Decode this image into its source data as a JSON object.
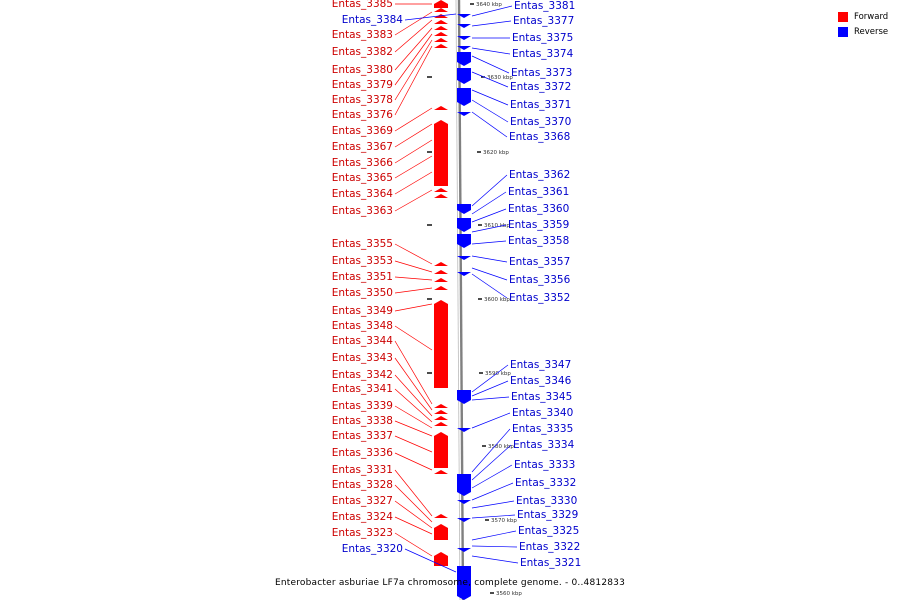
{
  "legend": {
    "forward_label": "Forward",
    "reverse_label": "Reverse",
    "forward_color": "#ff0000",
    "reverse_color": "#0000ff"
  },
  "caption": "Enterobacter asburiae LF7a chromosome, complete genome. - 0..4812833",
  "colors": {
    "forward": "#ff0000",
    "reverse": "#0000ff",
    "forward_label": "#cc0000",
    "reverse_label": "#0000cc",
    "axis": "#808080"
  },
  "ticks": [
    "3640 kbp",
    "3630 kbp",
    "3620 kbp",
    "3610 kbp",
    "3600 kbp",
    "3590 kbp",
    "3580 kbp",
    "3570 kbp",
    "3560 kbp"
  ],
  "forward_labels": [
    "Entas_3385",
    "Entas_3383",
    "Entas_3382",
    "Entas_3380",
    "Entas_3379",
    "Entas_3378",
    "Entas_3376",
    "Entas_3369",
    "Entas_3367",
    "Entas_3366",
    "Entas_3365",
    "Entas_3364",
    "Entas_3363",
    "Entas_3355",
    "Entas_3353",
    "Entas_3351",
    "Entas_3350",
    "Entas_3349",
    "Entas_3348",
    "Entas_3344",
    "Entas_3343",
    "Entas_3342",
    "Entas_3341",
    "Entas_3339",
    "Entas_3338",
    "Entas_3337",
    "Entas_3336",
    "Entas_3331",
    "Entas_3328",
    "Entas_3327",
    "Entas_3324",
    "Entas_3323"
  ],
  "reverse_left_labels": [
    "Entas_3384",
    "Entas_3320"
  ],
  "reverse_labels": [
    "Entas_3381",
    "Entas_3377",
    "Entas_3375",
    "Entas_3374",
    "Entas_3373",
    "Entas_3372",
    "Entas_3371",
    "Entas_3370",
    "Entas_3368",
    "Entas_3362",
    "Entas_3361",
    "Entas_3360",
    "Entas_3359",
    "Entas_3358",
    "Entas_3357",
    "Entas_3356",
    "Entas_3352",
    "Entas_3347",
    "Entas_3346",
    "Entas_3345",
    "Entas_3340",
    "Entas_3335",
    "Entas_3334",
    "Entas_3333",
    "Entas_3332",
    "Entas_3330",
    "Entas_3329",
    "Entas_3325",
    "Entas_3322",
    "Entas_3321"
  ]
}
